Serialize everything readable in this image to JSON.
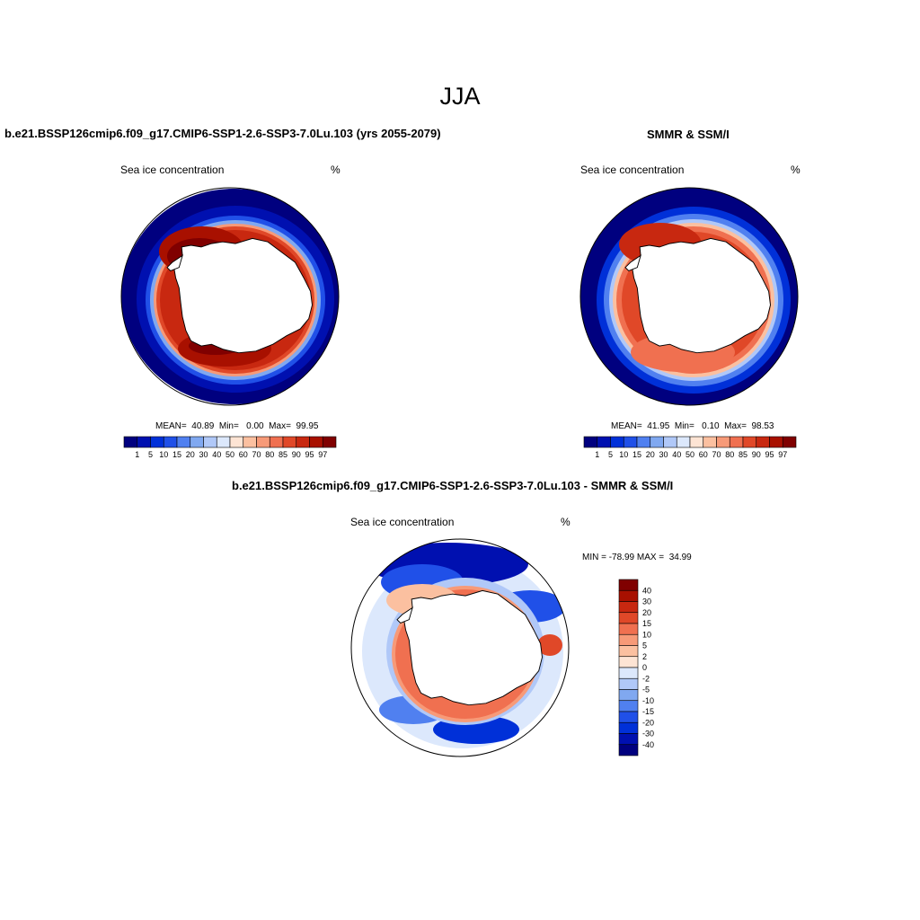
{
  "figure_title": "JJA",
  "colors": {
    "ocean_ice_free": "#ffffff",
    "land": "#ffffff",
    "coast": "#000000",
    "boundary": "#000000"
  },
  "panels": [
    {
      "title": "b.e21.BSSP126cmip6.f09_g17.CMIP6-SSP1-2.6-SSP3-7.0Lu.103 (yrs 2055-2079)",
      "variable_label": "Sea ice concentration",
      "units_label": "%",
      "stats": "MEAN=  40.89  Min=   0.00  Max=  99.95",
      "colorbar": {
        "orientation": "horizontal",
        "labels": [
          "1",
          "5",
          "10",
          "15",
          "20",
          "30",
          "40",
          "50",
          "60",
          "70",
          "80",
          "85",
          "90",
          "95",
          "97"
        ],
        "colors": [
          "#00007f",
          "#0010b0",
          "#0030d8",
          "#2050e8",
          "#5080f0",
          "#80a8f0",
          "#b0c8f8",
          "#dce8fc",
          "#fde4d4",
          "#fbc0a0",
          "#f79a78",
          "#f07050",
          "#e04828",
          "#c82810",
          "#a81000",
          "#800000"
        ]
      }
    },
    {
      "title": "SMMR & SSM/I",
      "variable_label": "Sea ice concentration",
      "units_label": "%",
      "stats": "MEAN=  41.95  Min=   0.10  Max=  98.53",
      "colorbar": {
        "orientation": "horizontal",
        "labels": [
          "1",
          "5",
          "10",
          "15",
          "20",
          "30",
          "40",
          "50",
          "60",
          "70",
          "80",
          "85",
          "90",
          "95",
          "97"
        ],
        "colors": [
          "#00007f",
          "#0010b0",
          "#0030d8",
          "#2050e8",
          "#5080f0",
          "#80a8f0",
          "#b0c8f8",
          "#dce8fc",
          "#fde4d4",
          "#fbc0a0",
          "#f79a78",
          "#f07050",
          "#e04828",
          "#c82810",
          "#a81000",
          "#800000"
        ]
      }
    },
    {
      "title": "b.e21.BSSP126cmip6.f09_g17.CMIP6-SSP1-2.6-SSP3-7.0Lu.103 - SMMR & SSM/I",
      "variable_label": "Sea ice concentration",
      "units_label": "%",
      "stats": "MIN = -78.99 MAX =  34.99",
      "colorbar": {
        "orientation": "vertical",
        "labels": [
          "40",
          "30",
          "20",
          "15",
          "10",
          "5",
          "2",
          "0",
          "-2",
          "-5",
          "-10",
          "-15",
          "-20",
          "-30",
          "-40"
        ],
        "colors": [
          "#800000",
          "#a81000",
          "#c82810",
          "#e04828",
          "#f07050",
          "#f79a78",
          "#fbc0a0",
          "#fde4d4",
          "#dce8fc",
          "#b0c8f8",
          "#80a8f0",
          "#5080f0",
          "#2050e8",
          "#0030d8",
          "#0010b0",
          "#00007f"
        ]
      }
    }
  ]
}
